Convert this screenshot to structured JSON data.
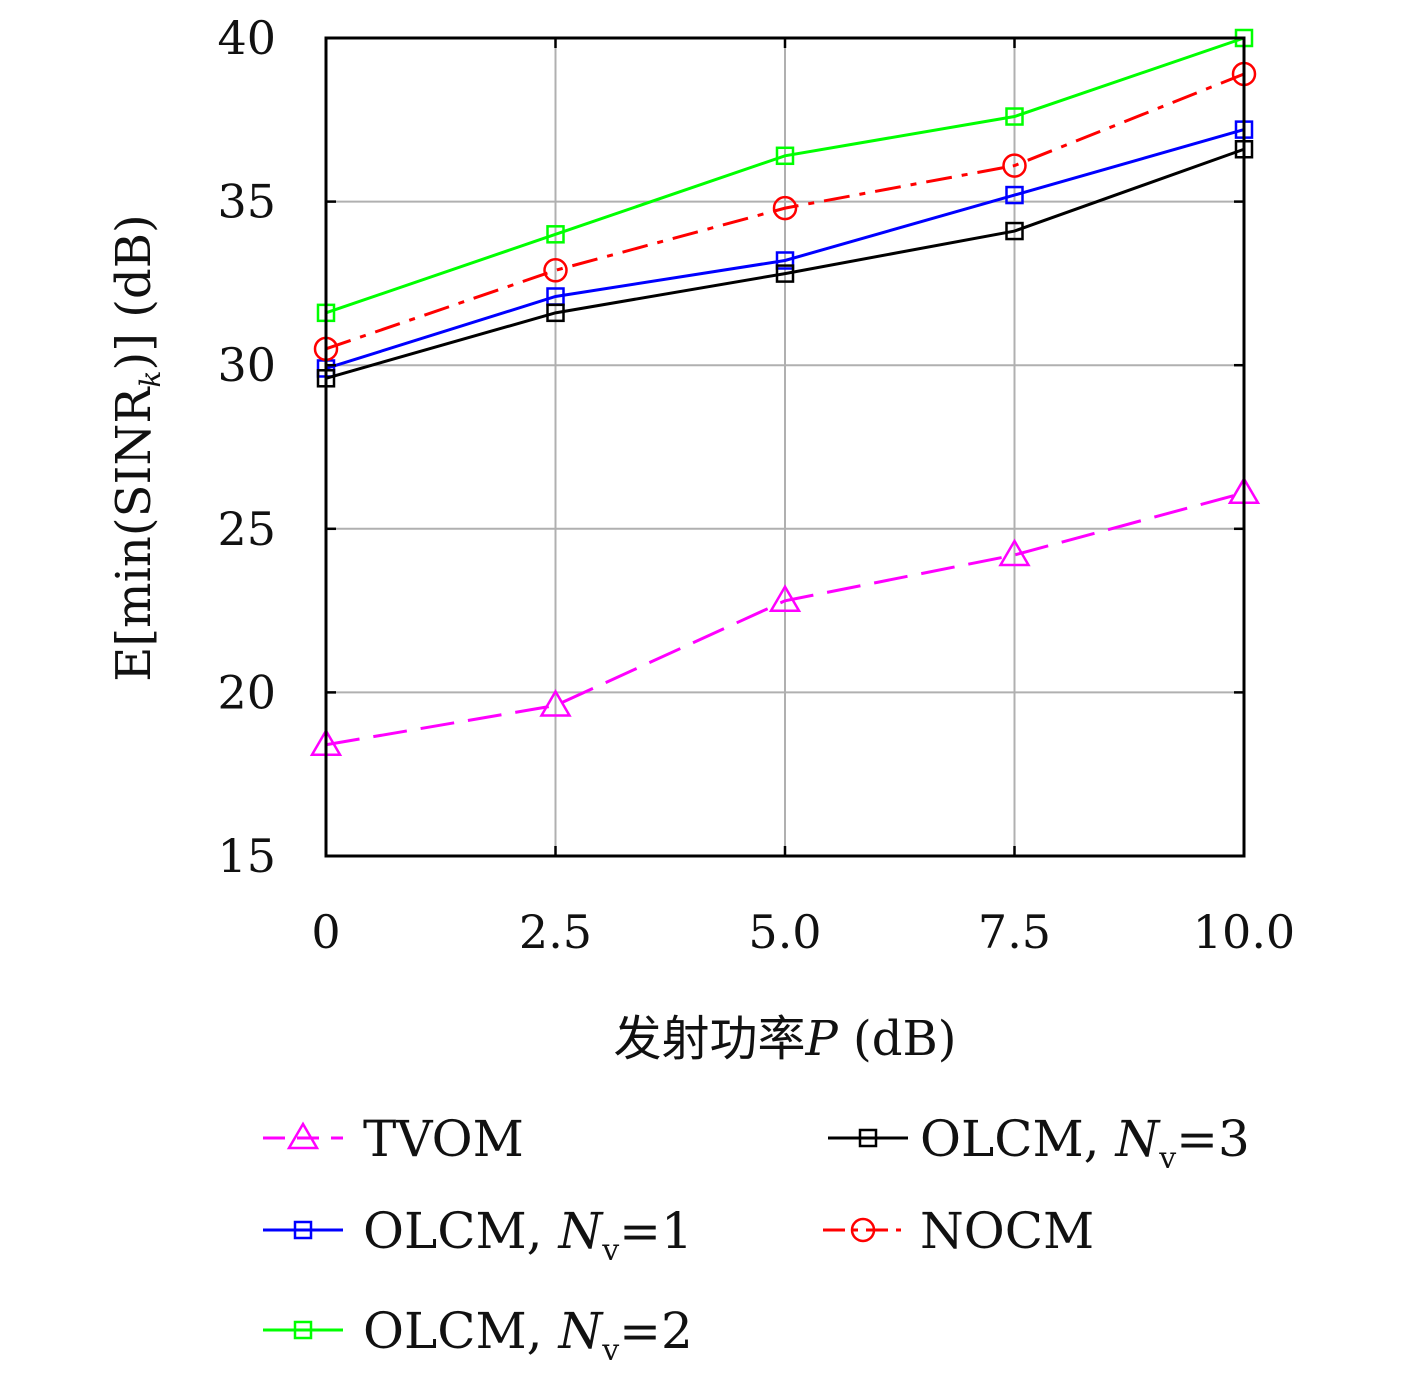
{
  "chart_data": {
    "type": "line",
    "title": "",
    "xlabel": "发射功率P (dB)",
    "ylabel": "E[min(SINR_k)] (dB)",
    "x": [
      0,
      2.5,
      5.0,
      7.5,
      10.0
    ],
    "x_tick_labels": [
      "0",
      "2.5",
      "5.0",
      "7.5",
      "10.0"
    ],
    "y_ticks": [
      15,
      20,
      25,
      30,
      35,
      40
    ],
    "y_tick_labels": [
      "15",
      "20",
      "25",
      "30",
      "35",
      "40"
    ],
    "xlim": [
      0,
      10
    ],
    "ylim": [
      15,
      40
    ],
    "grid": true,
    "legend_position": "bottom, two columns",
    "series": [
      {
        "name": "TVOM",
        "values": [
          18.4,
          19.6,
          22.8,
          24.2,
          26.1
        ],
        "color": "#ff00ff",
        "marker": "triangle",
        "dash": "dashed"
      },
      {
        "name": "OLCM, Nv=1",
        "values": [
          29.9,
          32.1,
          33.2,
          35.2,
          37.2
        ],
        "color": "#0000ff",
        "marker": "square",
        "dash": "solid"
      },
      {
        "name": "OLCM, Nv=2",
        "values": [
          31.6,
          34.0,
          36.4,
          37.6,
          40.0
        ],
        "color": "#00ff00",
        "marker": "square",
        "dash": "solid"
      },
      {
        "name": "OLCM, Nv=3",
        "values": [
          29.6,
          31.6,
          32.8,
          34.1,
          36.6
        ],
        "color": "#000000",
        "marker": "square",
        "dash": "solid"
      },
      {
        "name": "NOCM",
        "values": [
          30.5,
          32.9,
          34.8,
          36.1,
          38.9
        ],
        "color": "#ff0000",
        "marker": "circle",
        "dash": "dashdot"
      }
    ]
  },
  "legend": [
    {
      "label": "TVOM"
    },
    {
      "label_main": "OLCM, ",
      "label_var": "N",
      "label_sub": "v",
      "label_eq": "=1"
    },
    {
      "label_main": "OLCM, ",
      "label_var": "N",
      "label_sub": "v",
      "label_eq": "=2"
    },
    {
      "label_main": "OLCM, ",
      "label_var": "N",
      "label_sub": "v",
      "label_eq": "=3"
    },
    {
      "label": "NOCM"
    }
  ],
  "axis_text": {
    "x_prefix": "发射功率",
    "x_var": "P",
    "x_unit": " (dB)",
    "y_main": "E[min(SINR",
    "y_sub": "k",
    "y_end": ")] (dB)"
  }
}
